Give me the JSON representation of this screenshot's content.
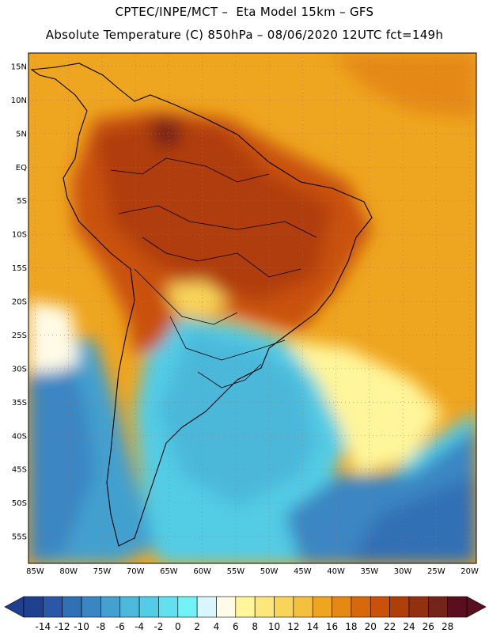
{
  "header": {
    "title_line1": "CPTEC/INPE/MCT –  Eta Model 15km – GFS",
    "title_line2": "Absolute Temperature (C) 850hPa – 08/06/2020 12UTC fct=149h"
  },
  "map": {
    "lon_range": [
      -86,
      -19
    ],
    "lat_range": [
      -59,
      17
    ],
    "lat_ticks": [
      "15N",
      "10N",
      "5N",
      "EQ",
      "5S",
      "10S",
      "15S",
      "20S",
      "25S",
      "30S",
      "35S",
      "40S",
      "45S",
      "50S",
      "55S"
    ],
    "lat_values": [
      15,
      10,
      5,
      0,
      -5,
      -10,
      -15,
      -20,
      -25,
      -30,
      -35,
      -40,
      -45,
      -50,
      -55
    ],
    "lon_ticks": [
      "85W",
      "80W",
      "75W",
      "70W",
      "65W",
      "60W",
      "55W",
      "50W",
      "45W",
      "40W",
      "35W",
      "30W",
      "25W",
      "20W"
    ],
    "lon_values": [
      -85,
      -80,
      -75,
      -70,
      -65,
      -60,
      -55,
      -50,
      -45,
      -40,
      -35,
      -30,
      -25,
      -20
    ],
    "grid": "dotted"
  },
  "colorbar": {
    "labels": [
      "-14",
      "-12",
      "-10",
      "-8",
      "-6",
      "-4",
      "-2",
      "0",
      "2",
      "4",
      "6",
      "8",
      "10",
      "12",
      "14",
      "16",
      "18",
      "20",
      "22",
      "24",
      "26",
      "28"
    ],
    "colors": [
      "#1f3f8f",
      "#2a58a6",
      "#3170b5",
      "#3a86c3",
      "#43a0cf",
      "#4cb8da",
      "#53cce5",
      "#63e0ef",
      "#72f2f7",
      "#d8f6fb",
      "#fffbe6",
      "#fff59a",
      "#fde77a",
      "#f8d45a",
      "#f3bf3c",
      "#eea51f",
      "#e58913",
      "#d8690b",
      "#c95109",
      "#b03e09",
      "#92310f",
      "#742418",
      "#5a0f1f"
    ]
  }
}
